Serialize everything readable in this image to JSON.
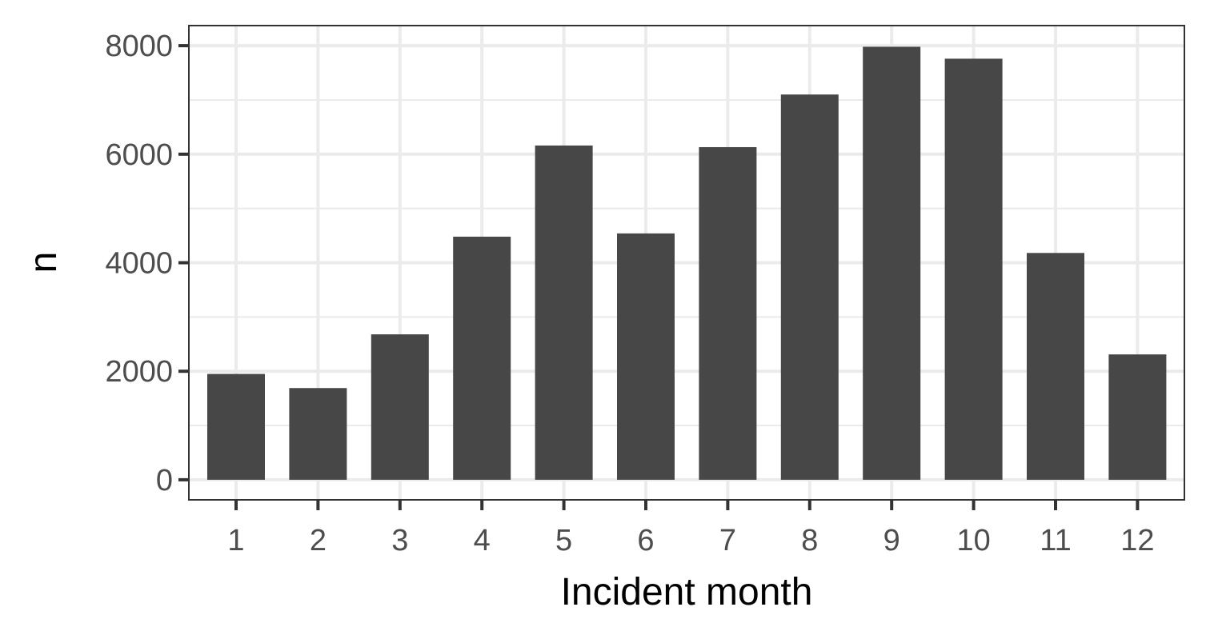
{
  "chart_data": {
    "type": "bar",
    "title": "",
    "xlabel": "Incident month",
    "ylabel": "n",
    "categories": [
      "1",
      "2",
      "3",
      "4",
      "5",
      "6",
      "7",
      "8",
      "9",
      "10",
      "11",
      "12"
    ],
    "values": [
      1950,
      1690,
      2680,
      4480,
      6160,
      4540,
      6130,
      7100,
      7980,
      7760,
      4180,
      2310
    ],
    "yticks": [
      "0",
      "2000",
      "4000",
      "6000",
      "8000"
    ],
    "ylim": [
      -370,
      8370
    ],
    "grid": true,
    "legend": "none",
    "colors": {
      "bar": "#474747",
      "grid": "#ebebeb",
      "background": "#ffffff"
    }
  }
}
